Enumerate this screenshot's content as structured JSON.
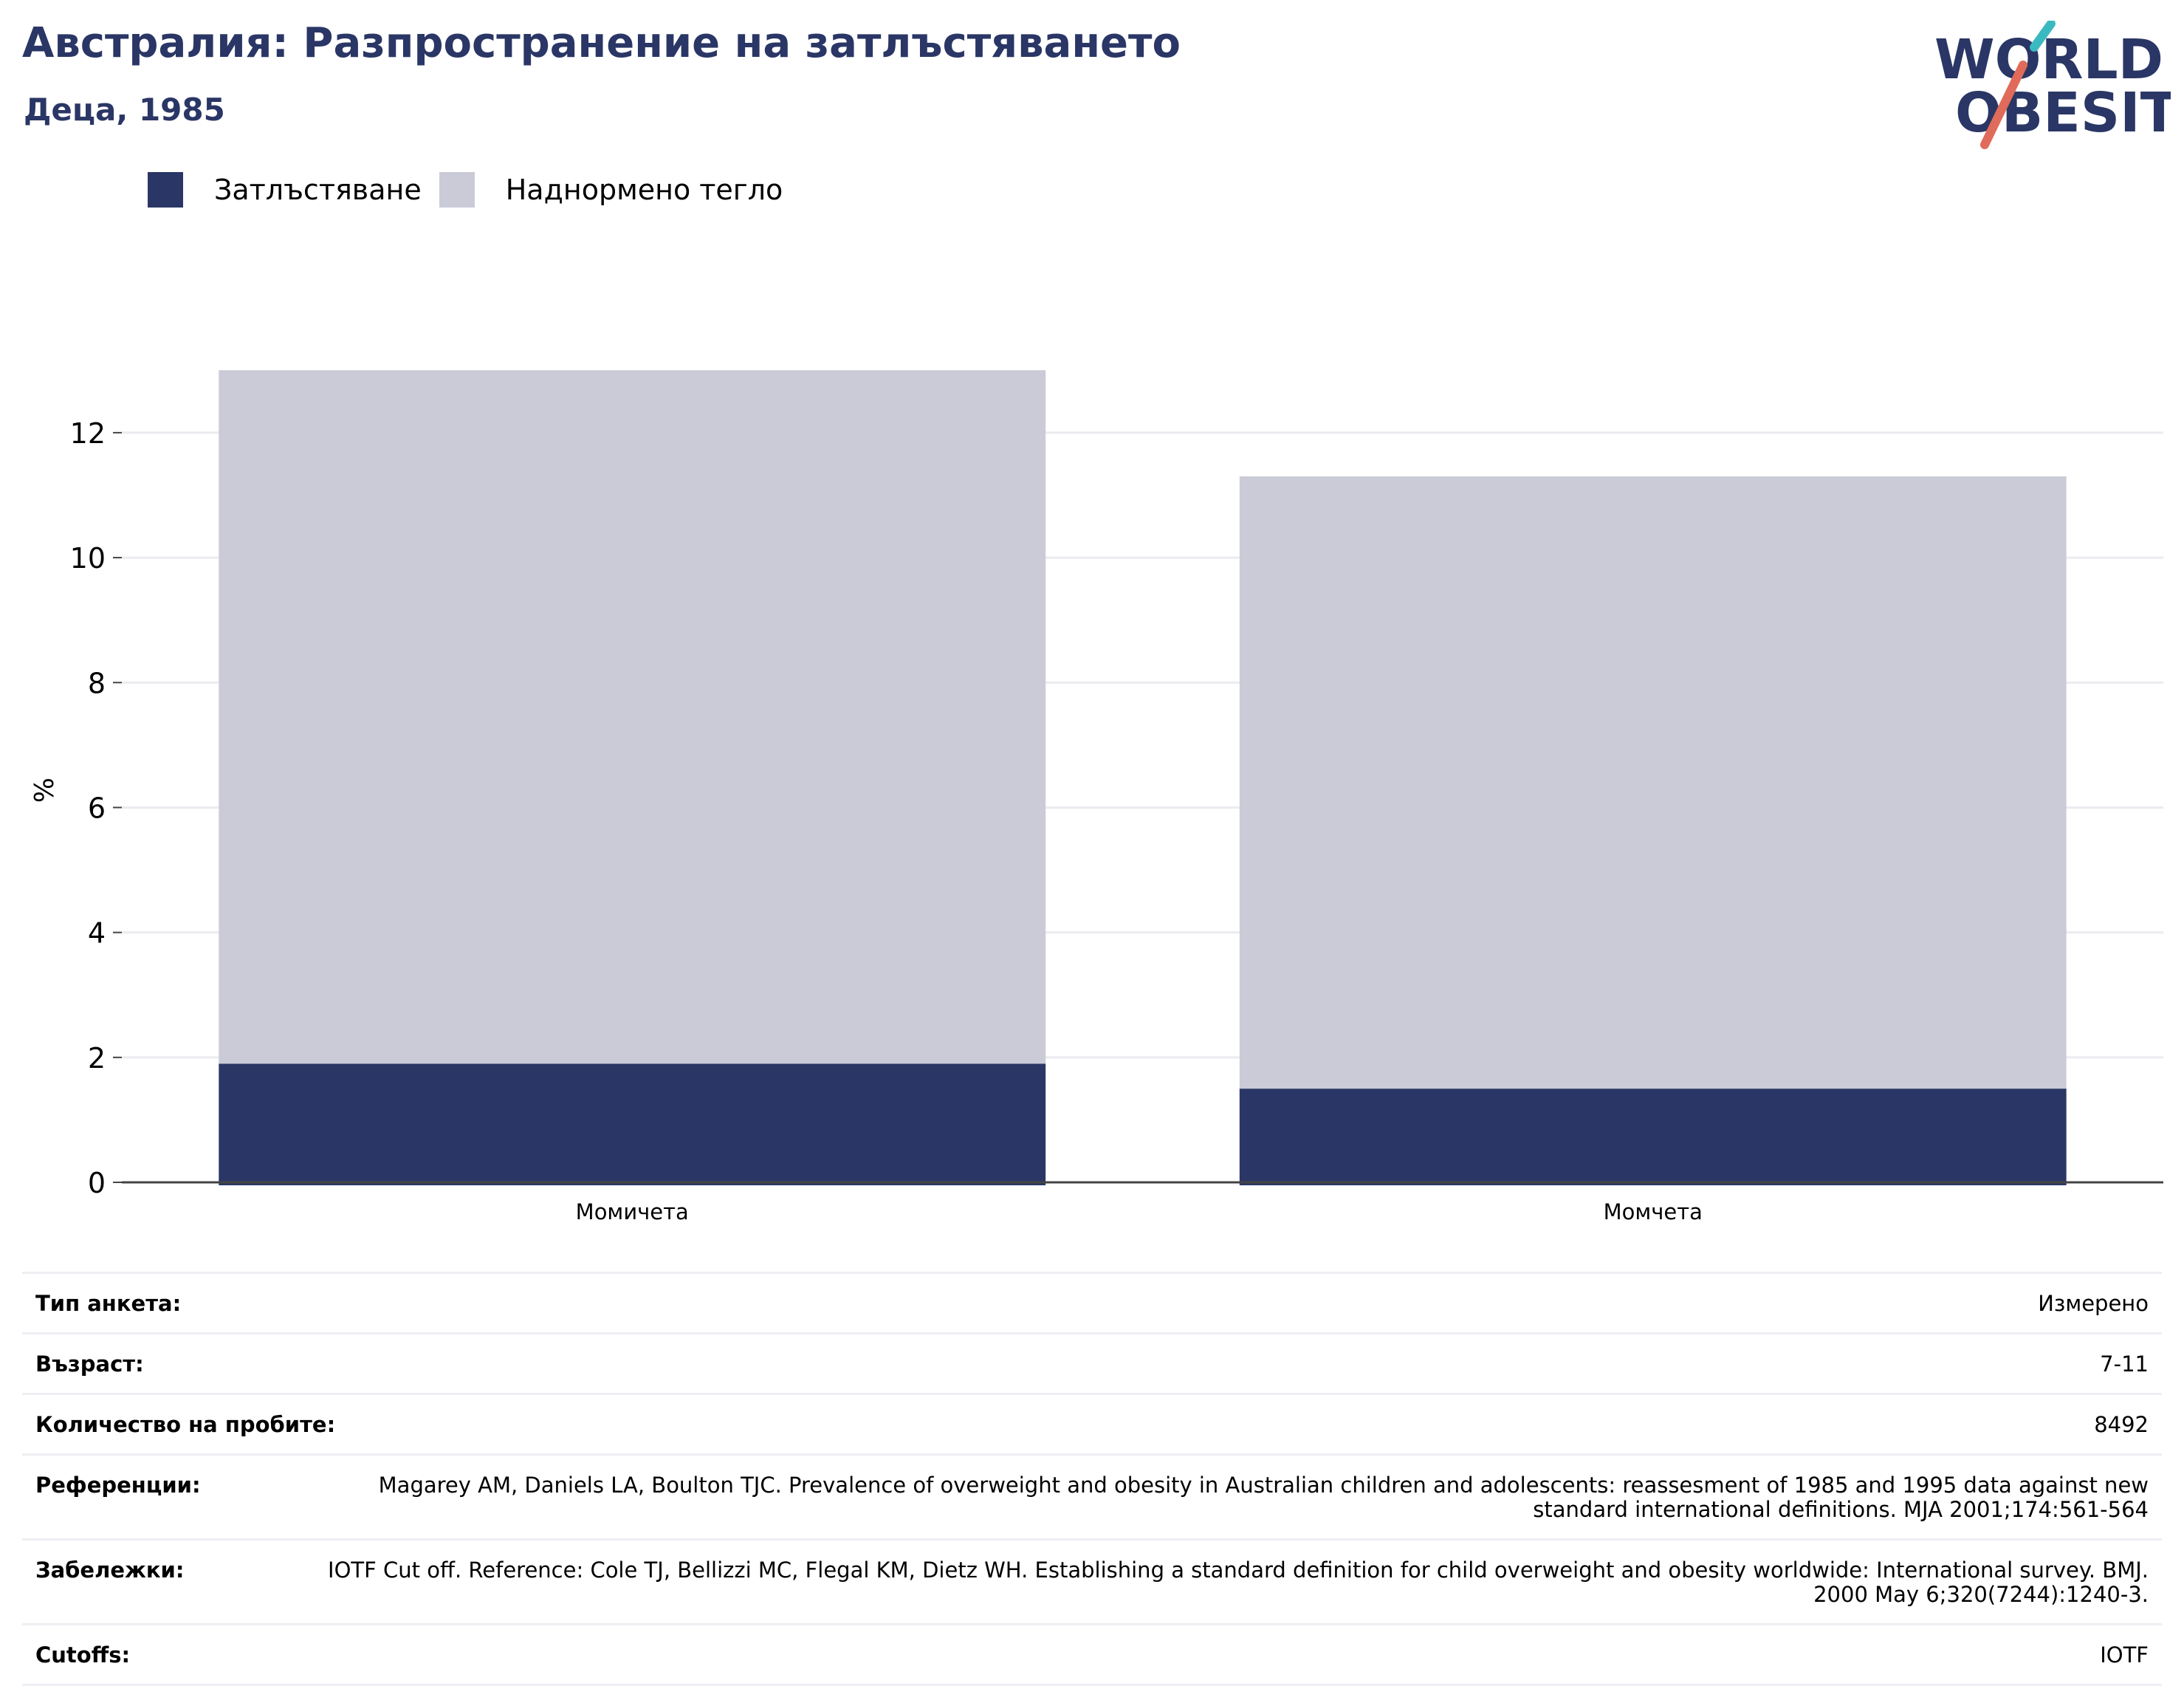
{
  "header": {
    "title": "Австралия: Разпространение на затлъстяването",
    "subtitle": "Деца, 1985"
  },
  "logo": {
    "line1": "WORLD",
    "line2": "OBESITY",
    "colors": {
      "text": "#2a3665",
      "slash_top": "#3bb9c0",
      "slash_bottom": "#e06b5a"
    }
  },
  "legend": {
    "items": [
      {
        "label": "Затлъстяване",
        "color": "#2a3665"
      },
      {
        "label": "Наднормено тегло",
        "color": "#cacbd7"
      }
    ]
  },
  "chart_data": {
    "type": "bar",
    "stacked": true,
    "categories": [
      "Момичета",
      "Момчета"
    ],
    "series": [
      {
        "name": "Затлъстяване",
        "color": "#2a3665",
        "values": [
          1.9,
          1.5
        ]
      },
      {
        "name": "Наднормено тегло",
        "color": "#cacbd7",
        "values": [
          11.1,
          9.8
        ]
      }
    ],
    "ylabel": "%",
    "ylim": [
      0,
      13.5
    ],
    "yticks": [
      0,
      2,
      4,
      6,
      8,
      10,
      12
    ],
    "grid": true,
    "legend_position": "top-left"
  },
  "meta": {
    "rows": [
      {
        "label": "Тип анкета:",
        "value": "Измерено"
      },
      {
        "label": "Възраст:",
        "value": "7-11"
      },
      {
        "label": "Количество на пробите:",
        "value": "8492"
      },
      {
        "label": "Референции:",
        "value": "Magarey AM, Daniels LA, Boulton TJC. Prevalence of overweight and obesity in Australian children and adolescents: reassesment of 1985 and 1995 data against new standard international definitions. MJA 2001;174:561-564"
      },
      {
        "label": "Забележки:",
        "value": "IOTF Cut off. Reference: Cole TJ, Bellizzi MC, Flegal KM, Dietz WH. Establishing a standard definition for child overweight and obesity worldwide: International survey. BMJ. 2000 May 6;320(7244):1240-3."
      },
      {
        "label": "Cutoffs:",
        "value": "IOTF"
      }
    ]
  }
}
